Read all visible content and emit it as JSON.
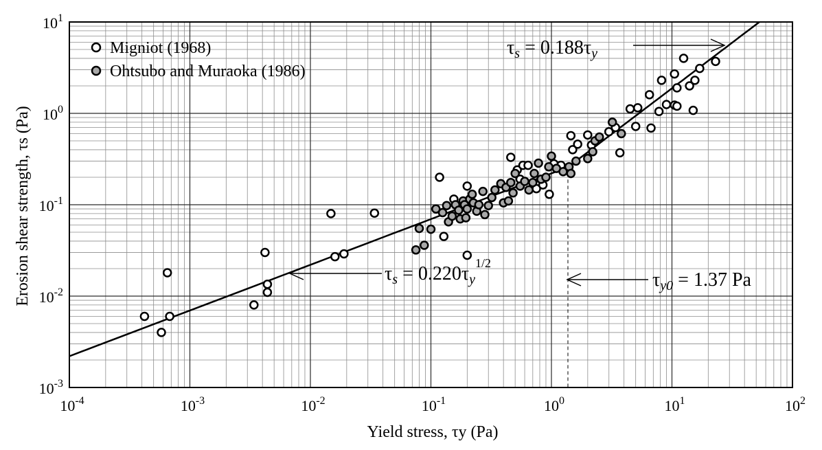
{
  "chart_data": {
    "type": "scatter",
    "title": "",
    "xlabel": "Yield stress,  τy (Pa)",
    "ylabel": "Erosion shear strength,  τs (Pa)",
    "xscale": "log",
    "yscale": "log",
    "xlim": [
      0.0001,
      100
    ],
    "ylim": [
      0.001,
      10
    ],
    "grid": true,
    "x_tick_labels": [
      "10-4",
      "10-3",
      "10-2",
      "10-1",
      "100",
      "101",
      "102"
    ],
    "y_tick_labels": [
      "10-3",
      "10-2",
      "10-1",
      "100",
      "101"
    ],
    "legend_position": "top-left",
    "series": [
      {
        "name": "Migniot (1968)",
        "marker": "open-circle",
        "color": "#ffffff",
        "points": [
          [
            0.00042,
            0.006
          ],
          [
            0.00058,
            0.004
          ],
          [
            0.00065,
            0.018
          ],
          [
            0.00068,
            0.006
          ],
          [
            0.0034,
            0.008
          ],
          [
            0.0042,
            0.03
          ],
          [
            0.0044,
            0.011
          ],
          [
            0.0044,
            0.0135
          ],
          [
            0.0148,
            0.08
          ],
          [
            0.016,
            0.027
          ],
          [
            0.019,
            0.029
          ],
          [
            0.034,
            0.081
          ],
          [
            0.118,
            0.2
          ],
          [
            0.128,
            0.045
          ],
          [
            0.155,
            0.115
          ],
          [
            0.2,
            0.16
          ],
          [
            0.2,
            0.028
          ],
          [
            0.46,
            0.33
          ],
          [
            0.52,
            0.24
          ],
          [
            0.55,
            0.19
          ],
          [
            0.58,
            0.27
          ],
          [
            0.64,
            0.27
          ],
          [
            0.75,
            0.15
          ],
          [
            0.85,
            0.165
          ],
          [
            0.96,
            0.13
          ],
          [
            1.05,
            0.28
          ],
          [
            1.2,
            0.27
          ],
          [
            1.45,
            0.57
          ],
          [
            1.5,
            0.4
          ],
          [
            1.65,
            0.46
          ],
          [
            2.0,
            0.58
          ],
          [
            2.15,
            0.45
          ],
          [
            3.0,
            0.63
          ],
          [
            3.4,
            0.7
          ],
          [
            3.7,
            0.37
          ],
          [
            4.5,
            1.12
          ],
          [
            5.0,
            0.72
          ],
          [
            5.2,
            1.15
          ],
          [
            6.5,
            1.6
          ],
          [
            6.7,
            0.69
          ],
          [
            7.8,
            1.05
          ],
          [
            8.2,
            2.3
          ],
          [
            9.0,
            1.25
          ],
          [
            10.5,
            2.7
          ],
          [
            10.5,
            1.23
          ],
          [
            11.0,
            1.2
          ],
          [
            11.0,
            1.9
          ],
          [
            12.5,
            4.0
          ],
          [
            14.0,
            2.0
          ],
          [
            15.0,
            1.08
          ],
          [
            15.5,
            2.3
          ],
          [
            17.0,
            3.1
          ],
          [
            23.0,
            3.7
          ]
        ]
      },
      {
        "name": "Ohtsubo  and Muraoka (1986)",
        "marker": "filled-circle",
        "color": "#a8a8a8",
        "points": [
          [
            0.075,
            0.032
          ],
          [
            0.08,
            0.055
          ],
          [
            0.088,
            0.036
          ],
          [
            0.1,
            0.054
          ],
          [
            0.11,
            0.09
          ],
          [
            0.125,
            0.082
          ],
          [
            0.135,
            0.098
          ],
          [
            0.14,
            0.065
          ],
          [
            0.15,
            0.075
          ],
          [
            0.16,
            0.1
          ],
          [
            0.17,
            0.087
          ],
          [
            0.175,
            0.07
          ],
          [
            0.185,
            0.11
          ],
          [
            0.19,
            0.1
          ],
          [
            0.195,
            0.072
          ],
          [
            0.2,
            0.09
          ],
          [
            0.21,
            0.115
          ],
          [
            0.22,
            0.13
          ],
          [
            0.225,
            0.105
          ],
          [
            0.24,
            0.085
          ],
          [
            0.25,
            0.1
          ],
          [
            0.27,
            0.14
          ],
          [
            0.28,
            0.078
          ],
          [
            0.3,
            0.098
          ],
          [
            0.32,
            0.12
          ],
          [
            0.34,
            0.145
          ],
          [
            0.38,
            0.17
          ],
          [
            0.4,
            0.105
          ],
          [
            0.42,
            0.155
          ],
          [
            0.44,
            0.11
          ],
          [
            0.46,
            0.175
          ],
          [
            0.48,
            0.135
          ],
          [
            0.5,
            0.22
          ],
          [
            0.55,
            0.16
          ],
          [
            0.6,
            0.18
          ],
          [
            0.65,
            0.145
          ],
          [
            0.7,
            0.175
          ],
          [
            0.72,
            0.22
          ],
          [
            0.78,
            0.285
          ],
          [
            0.82,
            0.19
          ],
          [
            0.9,
            0.2
          ],
          [
            0.95,
            0.26
          ],
          [
            1.0,
            0.34
          ],
          [
            1.1,
            0.25
          ],
          [
            1.25,
            0.23
          ],
          [
            1.4,
            0.26
          ],
          [
            1.45,
            0.22
          ],
          [
            1.6,
            0.3
          ],
          [
            2.0,
            0.32
          ],
          [
            2.2,
            0.38
          ],
          [
            2.3,
            0.5
          ],
          [
            2.5,
            0.55
          ],
          [
            3.2,
            0.8
          ],
          [
            3.8,
            0.6
          ]
        ]
      }
    ],
    "fit_line": {
      "segments": [
        {
          "label": "τs = 0.220τy1/2",
          "coef": 0.22,
          "exponent": 0.5,
          "x_from": 0.0001,
          "x_to": 1.37
        },
        {
          "label": "τs = 0.188τy",
          "coef": 0.188,
          "exponent": 1.0,
          "x_from": 1.37,
          "x_to": 53
        }
      ]
    },
    "reference_line": {
      "x": 1.37
    },
    "annotations": {
      "top": {
        "lhs": "τ",
        "lhs_sub": "s",
        "rhs": " = 0.188τ",
        "rhs_sub": "y"
      },
      "left": {
        "lhs": "τ",
        "lhs_sub": "s",
        "rhs": " = 0.220τ",
        "rhs_sub": "y",
        "rhs_sup": "1/2"
      },
      "right": {
        "lhs": "τ",
        "lhs_sub": "y0",
        "rhs": " = 1.37 Pa"
      }
    }
  }
}
